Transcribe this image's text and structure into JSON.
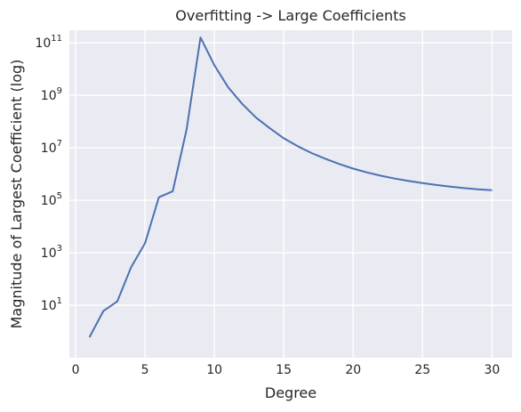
{
  "chart_data": {
    "type": "line",
    "title": "Overfitting -> Large Coefficients",
    "xlabel": "Degree",
    "ylabel": "Magnitude of Largest Coefficient (log)",
    "yscale": "log",
    "grid": true,
    "xlim": [
      -0.45,
      31.45
    ],
    "ylim": [
      0.1,
      300000000000
    ],
    "xticks": [
      0,
      5,
      10,
      15,
      20,
      25,
      30
    ],
    "xtick_labels": [
      "0",
      "5",
      "10",
      "15",
      "20",
      "25",
      "30"
    ],
    "yticks": [
      10,
      1000,
      100000,
      10000000,
      1000000000,
      100000000000
    ],
    "ytick_labels": [
      {
        "base": "10",
        "exp": "1"
      },
      {
        "base": "10",
        "exp": "3"
      },
      {
        "base": "10",
        "exp": "5"
      },
      {
        "base": "10",
        "exp": "7"
      },
      {
        "base": "10",
        "exp": "9"
      },
      {
        "base": "10",
        "exp": "11"
      }
    ],
    "series": [
      {
        "color": "#4c72b0",
        "x": [
          1,
          2,
          3,
          4,
          5,
          6,
          7,
          8,
          9,
          10,
          11,
          12,
          13,
          14,
          15,
          16,
          17,
          18,
          19,
          20,
          21,
          22,
          23,
          24,
          25,
          26,
          27,
          28,
          29,
          30
        ],
        "y": [
          0.6,
          6,
          14,
          280,
          2300,
          130000,
          220000,
          50000000,
          160000000000,
          14000000000,
          2000000000,
          470000000,
          140000000,
          55000000,
          23000000,
          11500000,
          6300000,
          3800000,
          2400000,
          1600000,
          1150000,
          860000,
          670000,
          540000,
          450000,
          380000,
          330000,
          290000,
          260000,
          240000
        ]
      }
    ]
  }
}
